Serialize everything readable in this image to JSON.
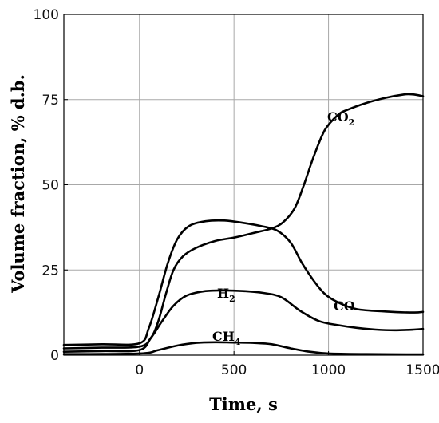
{
  "chart_data": {
    "type": "line",
    "xlabel": "Time, s",
    "ylabel": "Volume fraction, % d.b.",
    "xlim": [
      -400,
      1500
    ],
    "ylim": [
      0,
      100
    ],
    "x_ticks": [
      0,
      500,
      1000,
      1500
    ],
    "y_ticks": [
      0,
      25,
      50,
      75,
      100
    ],
    "grid": true,
    "series": [
      {
        "name": "CO2",
        "label_main": "CO",
        "label_sub": "2",
        "points": [
          [
            -400,
            2.0
          ],
          [
            -200,
            2.2
          ],
          [
            0,
            2.5
          ],
          [
            60,
            5
          ],
          [
            100,
            10
          ],
          [
            140,
            18
          ],
          [
            180,
            25
          ],
          [
            230,
            29
          ],
          [
            300,
            31.5
          ],
          [
            400,
            33.5
          ],
          [
            500,
            34.5
          ],
          [
            600,
            35.8
          ],
          [
            700,
            37.2
          ],
          [
            760,
            39
          ],
          [
            820,
            43
          ],
          [
            870,
            50
          ],
          [
            920,
            58
          ],
          [
            980,
            66
          ],
          [
            1050,
            70.5
          ],
          [
            1100,
            72
          ],
          [
            1200,
            74
          ],
          [
            1300,
            75.5
          ],
          [
            1400,
            76.5
          ],
          [
            1450,
            76.5
          ],
          [
            1500,
            76
          ]
        ]
      },
      {
        "name": "CO",
        "label_main": "CO",
        "points": [
          [
            -400,
            3.0
          ],
          [
            -200,
            3.2
          ],
          [
            0,
            3.5
          ],
          [
            50,
            8
          ],
          [
            100,
            17
          ],
          [
            150,
            27
          ],
          [
            200,
            34
          ],
          [
            260,
            37.8
          ],
          [
            350,
            39.3
          ],
          [
            450,
            39.5
          ],
          [
            550,
            38.8
          ],
          [
            650,
            37.8
          ],
          [
            730,
            36.5
          ],
          [
            800,
            33
          ],
          [
            860,
            27
          ],
          [
            920,
            22
          ],
          [
            980,
            18
          ],
          [
            1050,
            15.5
          ],
          [
            1150,
            13.5
          ],
          [
            1300,
            12.8
          ],
          [
            1450,
            12.5
          ],
          [
            1500,
            12.7
          ]
        ]
      },
      {
        "name": "H2",
        "label_main": "H",
        "label_sub": "2",
        "points": [
          [
            -400,
            1.0
          ],
          [
            -200,
            1.2
          ],
          [
            0,
            1.5
          ],
          [
            60,
            5
          ],
          [
            120,
            10
          ],
          [
            180,
            14.5
          ],
          [
            250,
            17.5
          ],
          [
            350,
            18.8
          ],
          [
            450,
            19
          ],
          [
            550,
            18.8
          ],
          [
            650,
            18.3
          ],
          [
            750,
            17
          ],
          [
            850,
            13
          ],
          [
            950,
            10
          ],
          [
            1050,
            8.8
          ],
          [
            1150,
            8
          ],
          [
            1250,
            7.5
          ],
          [
            1350,
            7.3
          ],
          [
            1450,
            7.5
          ],
          [
            1500,
            7.7
          ]
        ]
      },
      {
        "name": "CH4",
        "label_main": "CH",
        "label_sub": "4",
        "points": [
          [
            -400,
            0.3
          ],
          [
            0,
            0.5
          ],
          [
            100,
            1.5
          ],
          [
            200,
            2.8
          ],
          [
            300,
            3.6
          ],
          [
            400,
            3.8
          ],
          [
            500,
            3.7
          ],
          [
            600,
            3.6
          ],
          [
            700,
            3.2
          ],
          [
            800,
            2.0
          ],
          [
            900,
            1.0
          ],
          [
            1000,
            0.5
          ],
          [
            1200,
            0.3
          ],
          [
            1500,
            0.2
          ]
        ]
      }
    ]
  }
}
